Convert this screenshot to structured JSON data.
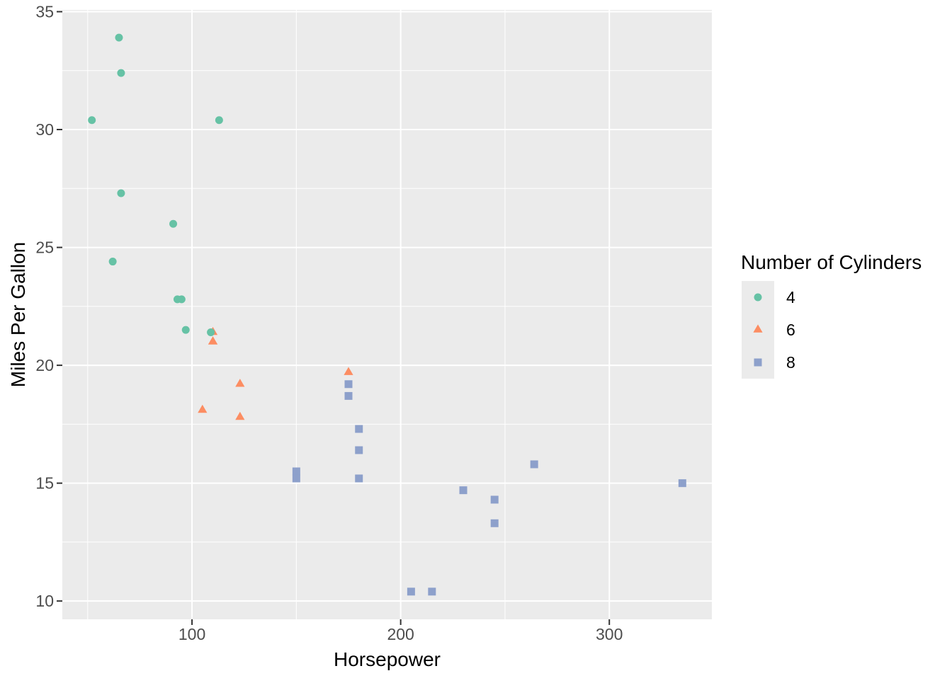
{
  "chart_data": {
    "type": "scatter",
    "title": "",
    "xlabel": "Horsepower",
    "ylabel": "Miles Per Gallon",
    "x_ticks": [
      100,
      200,
      300
    ],
    "y_ticks": [
      10,
      15,
      20,
      25,
      30,
      35
    ],
    "x_minor_ticks": [
      50,
      150,
      250
    ],
    "y_minor_ticks": [
      12.5,
      17.5,
      22.5,
      27.5,
      32.5
    ],
    "xlim": [
      37.85,
      349.15
    ],
    "ylim": [
      9.225,
      35.075
    ],
    "grid": true,
    "legend_position": "right",
    "legend_title": "Number of Cylinders",
    "panel_bg": "#EBEBEB",
    "legend_key_bg": "#EBEBEB",
    "grid_color": "#FFFFFF",
    "tick_color": "#333333",
    "tick_label_color": "#4D4D4D",
    "axis_title_color": "#000000",
    "draw_order": [
      1,
      2,
      0
    ],
    "series": [
      {
        "name": "4",
        "shape": "circle",
        "color": "#66C2A5",
        "points": [
          [
            93,
            22.8
          ],
          [
            62,
            24.4
          ],
          [
            95,
            22.8
          ],
          [
            66,
            32.4
          ],
          [
            52,
            30.4
          ],
          [
            65,
            33.9
          ],
          [
            97,
            21.5
          ],
          [
            66,
            27.3
          ],
          [
            91,
            26.0
          ],
          [
            113,
            30.4
          ],
          [
            109,
            21.4
          ]
        ]
      },
      {
        "name": "6",
        "shape": "triangle",
        "color": "#FC8D62",
        "points": [
          [
            110,
            21.0
          ],
          [
            110,
            21.0
          ],
          [
            110,
            21.4
          ],
          [
            105,
            18.1
          ],
          [
            123,
            19.2
          ],
          [
            123,
            17.8
          ],
          [
            175,
            19.7
          ]
        ]
      },
      {
        "name": "8",
        "shape": "square",
        "color": "#8DA0CB",
        "points": [
          [
            175,
            18.7
          ],
          [
            245,
            14.3
          ],
          [
            180,
            16.4
          ],
          [
            180,
            17.3
          ],
          [
            180,
            15.2
          ],
          [
            205,
            10.4
          ],
          [
            215,
            10.4
          ],
          [
            230,
            14.7
          ],
          [
            150,
            15.5
          ],
          [
            150,
            15.2
          ],
          [
            245,
            13.3
          ],
          [
            175,
            19.2
          ],
          [
            264,
            15.8
          ],
          [
            335,
            15.0
          ]
        ]
      }
    ]
  }
}
